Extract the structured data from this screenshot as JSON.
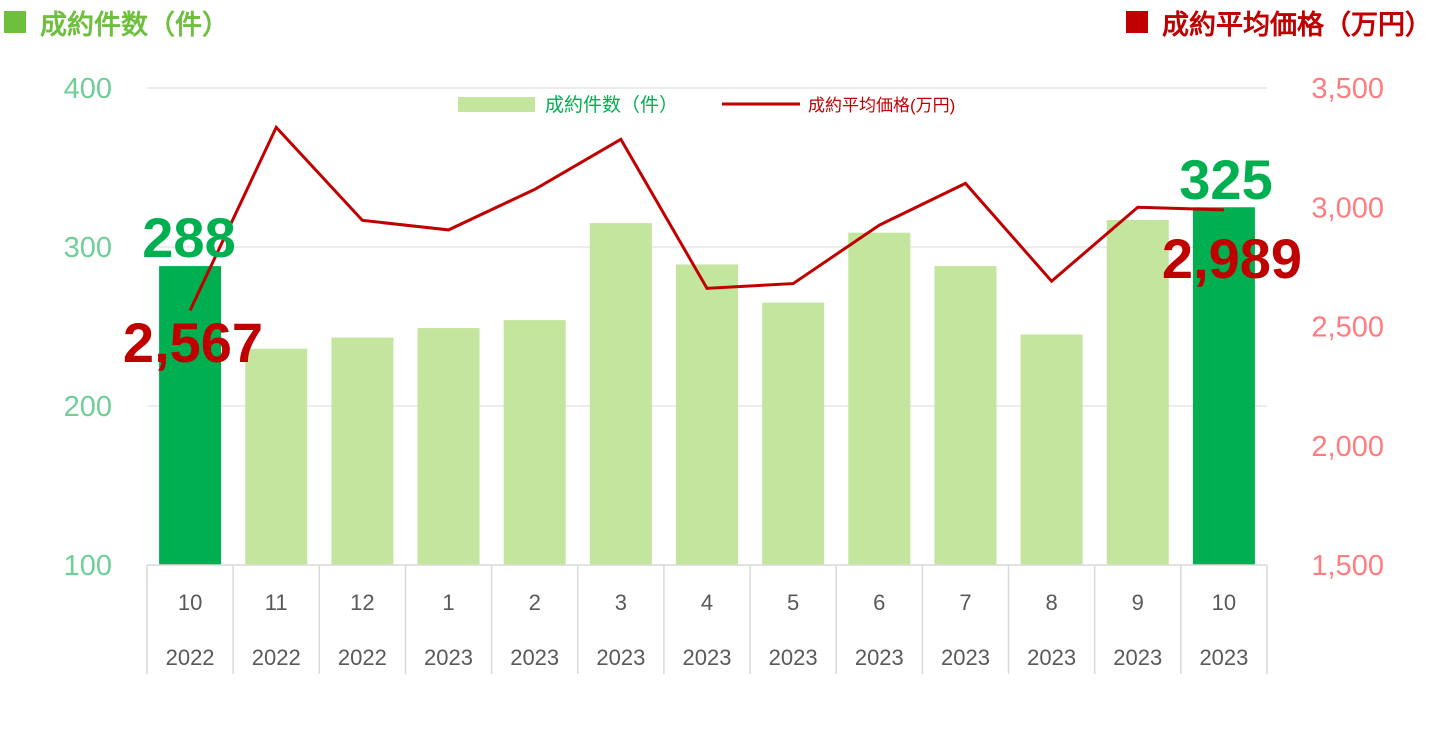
{
  "header": {
    "left_label": "成約件数（件）",
    "right_label": "成約平均価格（万円）"
  },
  "colors": {
    "bar_light": "#c3e59d",
    "bar_highlight": "#00b050",
    "line": "#c00000",
    "left_axis_text": "#6fcf97",
    "right_axis_text": "#ff7c80",
    "left_header": "#6fbf3f",
    "right_header": "#c00000",
    "x_axis_text": "#595959",
    "grid": "#d9d9d9"
  },
  "chart_data": {
    "type": "bar",
    "categories": [
      {
        "month": "10",
        "year": "2022"
      },
      {
        "month": "11",
        "year": "2022"
      },
      {
        "month": "12",
        "year": "2022"
      },
      {
        "month": "1",
        "year": "2023"
      },
      {
        "month": "2",
        "year": "2023"
      },
      {
        "month": "3",
        "year": "2023"
      },
      {
        "month": "4",
        "year": "2023"
      },
      {
        "month": "5",
        "year": "2023"
      },
      {
        "month": "6",
        "year": "2023"
      },
      {
        "month": "7",
        "year": "2023"
      },
      {
        "month": "8",
        "year": "2023"
      },
      {
        "month": "9",
        "year": "2023"
      },
      {
        "month": "10",
        "year": "2023"
      }
    ],
    "series": [
      {
        "name": "成約件数（件）",
        "type": "bar",
        "axis": "left",
        "values": [
          288,
          236,
          243,
          249,
          254,
          315,
          289,
          265,
          309,
          288,
          245,
          317,
          325
        ],
        "highlight_indices": [
          0,
          12
        ]
      },
      {
        "name": "成約平均価格(万円)",
        "type": "line",
        "axis": "right",
        "values": [
          2567,
          3335,
          2945,
          2905,
          3075,
          3285,
          2660,
          2680,
          2925,
          3100,
          2690,
          3000,
          2989
        ]
      }
    ],
    "left_axis": {
      "ylim": [
        100,
        400
      ],
      "ticks": [
        "100",
        "200",
        "300",
        "400"
      ]
    },
    "right_axis": {
      "ylim": [
        1500,
        3500
      ],
      "ticks": [
        "1,500",
        "2,000",
        "2,500",
        "3,000",
        "3,500"
      ]
    },
    "annotations": [
      {
        "label": "288",
        "series": 0,
        "index": 0
      },
      {
        "label": "325",
        "series": 0,
        "index": 12
      },
      {
        "label": "2,567",
        "series": 1,
        "index": 0
      },
      {
        "label": "2,989",
        "series": 1,
        "index": 12
      }
    ],
    "grid": true,
    "legend": "top-center"
  }
}
